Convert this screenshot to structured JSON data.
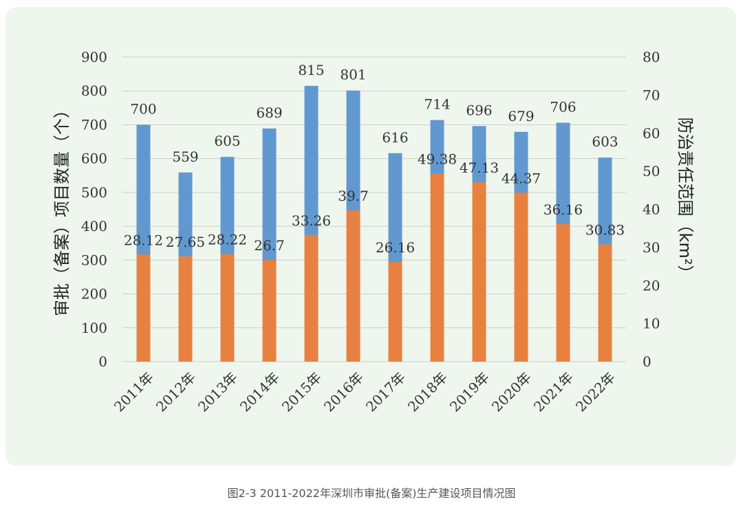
{
  "caption": "图2-3 2011-2022年深圳市审批(备案)生产建设项目情况图",
  "chart_data": {
    "type": "bar",
    "categories": [
      "2011年",
      "2012年",
      "2013年",
      "2014年",
      "2015年",
      "2016年",
      "2017年",
      "2018年",
      "2019年",
      "2020年",
      "2021年",
      "2022年"
    ],
    "series": [
      {
        "name": "审批(备案)项目数量(个)",
        "axis": "left",
        "color": "#6298d0",
        "values": [
          700,
          559,
          605,
          689,
          815,
          801,
          616,
          714,
          696,
          679,
          706,
          603
        ],
        "labels": [
          "700",
          "559",
          "605",
          "689",
          "815",
          "801",
          "616",
          "714",
          "696",
          "679",
          "706",
          "603"
        ]
      },
      {
        "name": "防治责任范围(km²)",
        "axis": "right",
        "color": "#e8813f",
        "values": [
          28.12,
          27.65,
          28.22,
          26.7,
          33.26,
          39.7,
          26.16,
          49.38,
          47.13,
          44.37,
          36.16,
          30.83
        ],
        "labels": [
          "28.12",
          "27.65",
          "28.22",
          "26.7",
          "33.26",
          "39.7",
          "26.16",
          "49.38",
          "47.13",
          "44.37",
          "36.16",
          "30.83"
        ]
      }
    ],
    "left_axis": {
      "label": "审批（备案）项目数量（个）",
      "ylim": [
        0,
        900
      ],
      "ticks": [
        "0",
        "100",
        "200",
        "300",
        "400",
        "500",
        "600",
        "700",
        "800",
        "900"
      ]
    },
    "right_axis": {
      "label": "防治责任范围（km²）",
      "ylim": [
        0,
        80
      ],
      "ticks": [
        "0",
        "10",
        "20",
        "30",
        "40",
        "50",
        "60",
        "70",
        "80"
      ]
    },
    "grid": true,
    "legend": "none"
  }
}
